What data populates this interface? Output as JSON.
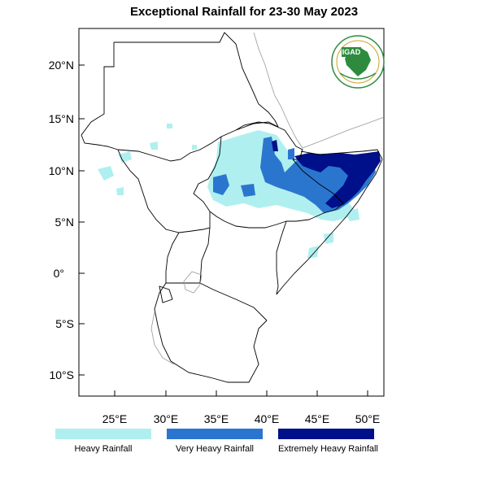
{
  "title": "Exceptional Rainfall for 23-30 May 2023",
  "logo": {
    "text": "IGAD",
    "color": "#2e8b3e"
  },
  "axes": {
    "lat_ticks": [
      "20°N",
      "15°N",
      "10°N",
      "5°N",
      "0°",
      "5°S",
      "10°S"
    ],
    "lon_ticks": [
      "25°E",
      "30°E",
      "35°E",
      "40°E",
      "45°E",
      "50°E"
    ],
    "lat_range": [
      -12,
      24
    ],
    "lon_range": [
      21.5,
      51.5
    ]
  },
  "legend": [
    {
      "label": "Heavy Rainfall",
      "color": "#b0efef"
    },
    {
      "label": "Very Heavy Rainfall",
      "color": "#2a76cf"
    },
    {
      "label": "Extremely Heavy Rainfall",
      "color": "#000f8a"
    }
  ]
}
